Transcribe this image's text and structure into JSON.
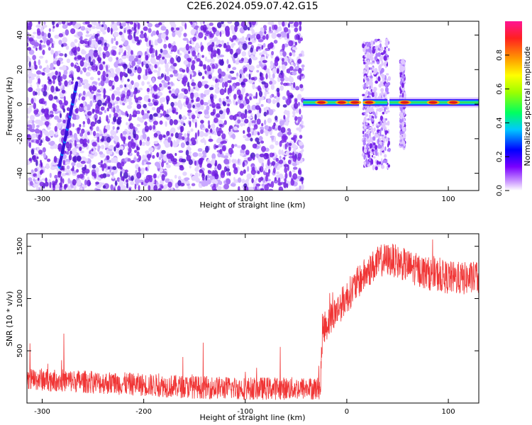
{
  "title": "C2E6.2024.059.07.42.G15",
  "colors": {
    "snr_line": "#f03535",
    "scatter_purple": "#8a2be2",
    "signal_core": "#d81f1f",
    "signal_band": "#00c8ff"
  },
  "chart_data": [
    {
      "type": "heatmap",
      "title": "",
      "xlabel": "Height of straight line (km)",
      "ylabel": "Frequency (Hz)",
      "xlim": [
        -315,
        130
      ],
      "ylim": [
        -50,
        48
      ],
      "xticks": [
        -300,
        -200,
        -100,
        0,
        100
      ],
      "yticks": [
        -40,
        -20,
        0,
        20,
        40
      ],
      "noise_region_x": [
        -315,
        -43
      ],
      "signal": {
        "center_freq": 1,
        "segments": [
          [
            -43,
            12
          ],
          [
            16,
            40
          ],
          [
            42,
            130
          ]
        ],
        "hotspots_x": [
          -25,
          -5,
          8,
          22,
          57,
          85,
          105
        ]
      },
      "colorbar": {
        "label": "Normalized spectral amplitude",
        "range": [
          0.0,
          1.0
        ],
        "ticks": [
          0.0,
          0.2,
          0.4,
          0.6,
          0.8
        ]
      }
    },
    {
      "type": "line",
      "title": "",
      "xlabel": "Height of straight line (km)",
      "ylabel": "SNR (10 * v/v)",
      "xlim": [
        -315,
        130
      ],
      "ylim": [
        0,
        1620
      ],
      "xticks": [
        -300,
        -200,
        -100,
        0,
        100
      ],
      "yticks": [
        500,
        1000,
        1500
      ],
      "series": [
        {
          "name": "",
          "x": [
            -315,
            -300,
            -280,
            -260,
            -240,
            -220,
            -200,
            -180,
            -160,
            -140,
            -120,
            -100,
            -80,
            -60,
            -40,
            -26,
            -24,
            -15,
            -5,
            5,
            15,
            25,
            35,
            45,
            55,
            65,
            80,
            100,
            115,
            130
          ],
          "y": [
            230,
            225,
            215,
            205,
            195,
            185,
            175,
            165,
            155,
            150,
            145,
            140,
            140,
            140,
            140,
            140,
            700,
            820,
            950,
            1080,
            1200,
            1300,
            1370,
            1370,
            1330,
            1290,
            1240,
            1200,
            1190,
            1200
          ]
        }
      ]
    }
  ]
}
